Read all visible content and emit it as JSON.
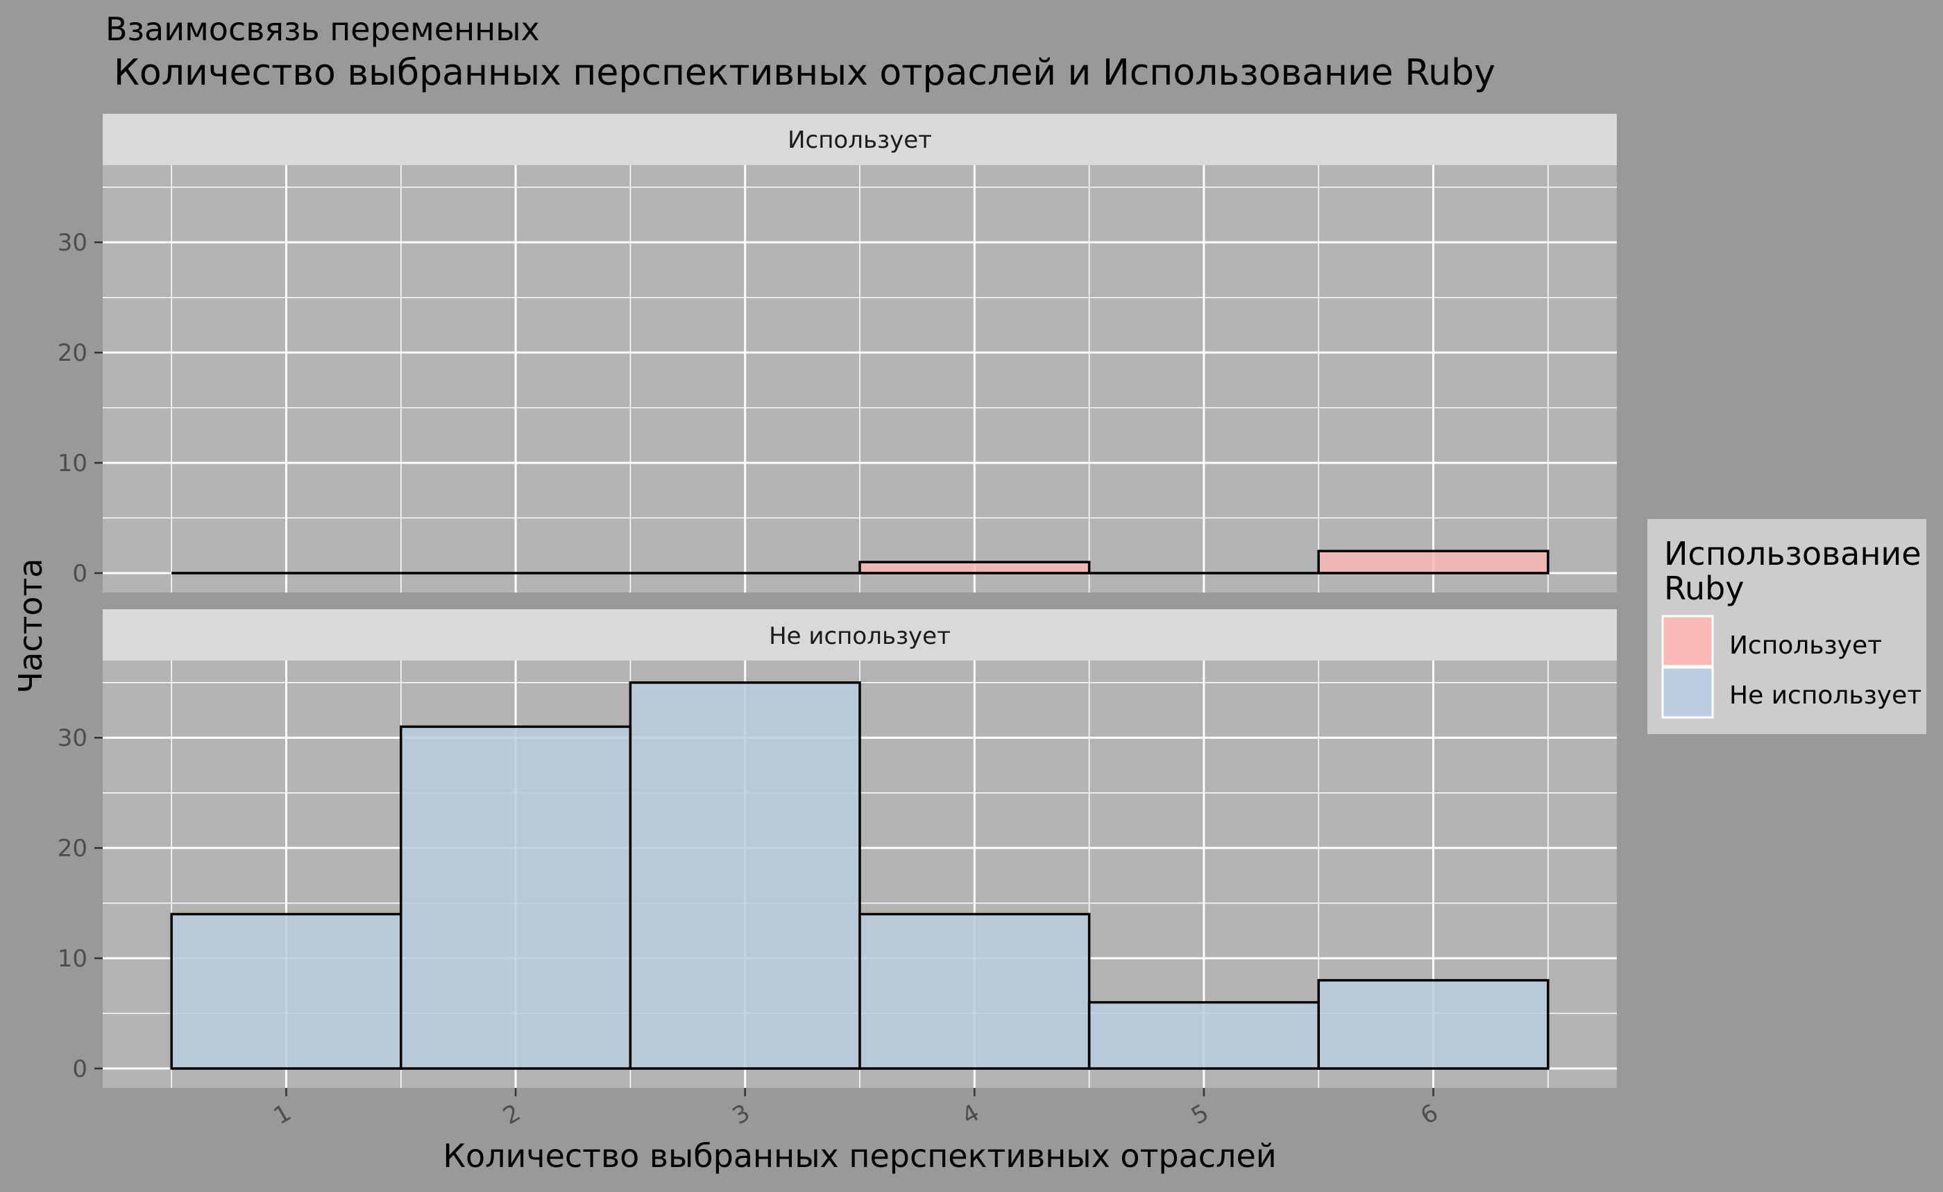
{
  "chart_data": {
    "type": "bar",
    "title": "Взаимосвязь переменных",
    "subtitle": "Количество выбранных перспективных отраслей и Использование Ruby",
    "xlabel": "Количество выбранных перспективных отраслей",
    "ylabel": "Частота",
    "categories": [
      "1",
      "2",
      "3",
      "4",
      "5",
      "6"
    ],
    "ylim": [
      0,
      37
    ],
    "yticks": [
      "0",
      "10",
      "20",
      "30"
    ],
    "grid": true,
    "legend": {
      "title": "Использование Ruby",
      "title_lines": [
        "Использование",
        "Ruby"
      ],
      "position": "right",
      "items": [
        {
          "label": "Использует",
          "color": "#F8B8B4"
        },
        {
          "label": "Не использует",
          "color": "#B9CDDF"
        }
      ]
    },
    "series": [
      {
        "name": "Использует",
        "values": [
          0,
          0,
          0,
          1,
          0,
          2
        ],
        "color": "#F8B8B4"
      },
      {
        "name": "Не использует",
        "values": [
          14,
          31,
          35,
          14,
          6,
          8
        ],
        "color": "#B9CDDF"
      }
    ]
  },
  "colors": {
    "page_background": "#999999",
    "panel_background": "#B3B3B3",
    "strip_background": "#D9D9D9",
    "legend_background": "#CCCCCC",
    "gridline": "#FFFFFF",
    "bar_outline": "#000000"
  }
}
